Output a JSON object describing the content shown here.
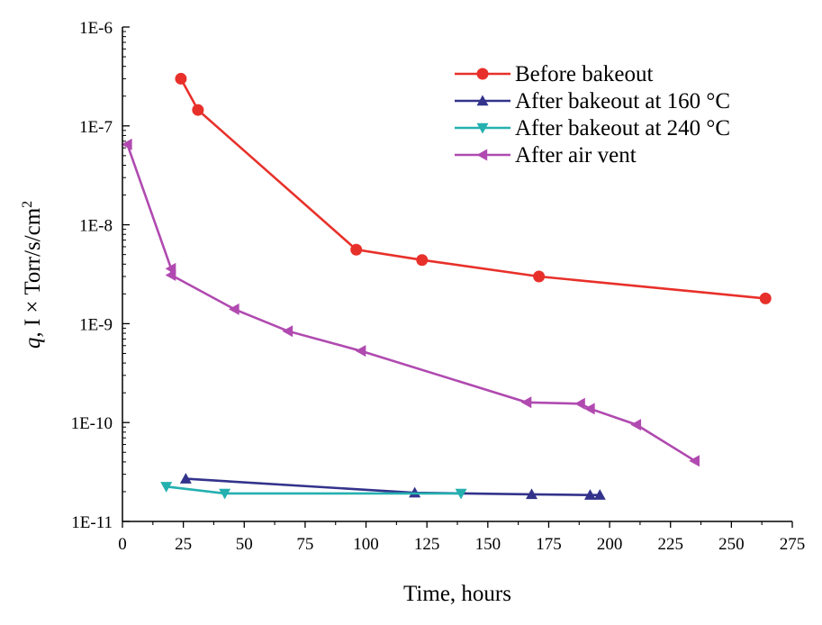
{
  "chart_data": {
    "type": "line",
    "title": "",
    "xlabel": "Time, hours",
    "ylabel_parts": [
      "q",
      ", I × Torr/s/cm",
      "2"
    ],
    "xlim": [
      0,
      275
    ],
    "ylim": [
      1e-11,
      1e-06
    ],
    "yscale": "log",
    "x_ticks": [
      0,
      25,
      50,
      75,
      100,
      125,
      150,
      175,
      200,
      225,
      250,
      275
    ],
    "y_ticks": [
      {
        "value": 1e-11,
        "label": "1E-11"
      },
      {
        "value": 1e-10,
        "label": "1E-10"
      },
      {
        "value": 1e-09,
        "label": "1E-9"
      },
      {
        "value": 1e-08,
        "label": "1E-8"
      },
      {
        "value": 1e-07,
        "label": "1E-7"
      },
      {
        "value": 1e-06,
        "label": "1E-6"
      }
    ],
    "legend_position": "top-right",
    "series": [
      {
        "name": "Before bakeout",
        "color": "#e8302a",
        "marker": "circle",
        "points": [
          [
            24,
            3e-07
          ],
          [
            31,
            1.45e-07
          ],
          [
            96,
            5.6e-09
          ],
          [
            123,
            4.4e-09
          ],
          [
            171,
            3e-09
          ],
          [
            264,
            1.8e-09
          ]
        ]
      },
      {
        "name": "After bakeout at 160 °C",
        "color": "#33338c",
        "marker": "triangle-up",
        "points": [
          [
            26,
            2.7e-11
          ],
          [
            120,
            1.95e-11
          ],
          [
            168,
            1.88e-11
          ],
          [
            192,
            1.85e-11
          ],
          [
            196,
            1.85e-11
          ]
        ]
      },
      {
        "name": "After bakeout at 240 °C",
        "color": "#25b0b0",
        "marker": "triangle-down",
        "points": [
          [
            18,
            2.25e-11
          ],
          [
            42,
            1.92e-11
          ],
          [
            139,
            1.92e-11
          ]
        ]
      },
      {
        "name": "After air vent",
        "color": "#b04ab0",
        "marker": "triangle-left",
        "points": [
          [
            2,
            6.5e-08
          ],
          [
            20,
            3.6e-09
          ],
          [
            20,
            3.1e-09
          ],
          [
            46,
            1.4e-09
          ],
          [
            68,
            8.4e-10
          ],
          [
            98,
            5.3e-10
          ],
          [
            166,
            1.6e-10
          ],
          [
            188,
            1.55e-10
          ],
          [
            192,
            1.38e-10
          ],
          [
            211,
            9.5e-11
          ],
          [
            235,
            4.1e-11
          ]
        ]
      }
    ]
  }
}
